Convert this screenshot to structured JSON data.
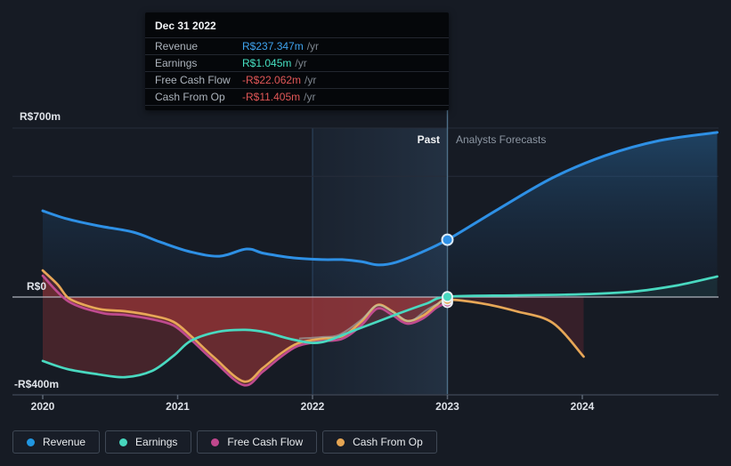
{
  "colors": {
    "background": "#161b24",
    "revenue": "#2e90e5",
    "earnings": "#49d9c0",
    "free_cash_flow": "#bf4b8f",
    "cash_from_op": "#e7a757",
    "negative_value_text": "#e25757",
    "revenue_value_text": "#3fa3ee",
    "earnings_value_text": "#46e0c2",
    "zero_line": "#c9cdd7",
    "gridline": "#262d3a",
    "hover_line": "#4f7089"
  },
  "tooltip": {
    "date": "Dec 31 2022",
    "rows": [
      {
        "label": "Revenue",
        "value": "R$237.347m",
        "unit": "/yr",
        "value_color": "#3fa3ee"
      },
      {
        "label": "Earnings",
        "value": "R$1.045m",
        "unit": "/yr",
        "value_color": "#46e0c2"
      },
      {
        "label": "Free Cash Flow",
        "value": "-R$22.062m",
        "unit": "/yr",
        "value_color": "#e25757"
      },
      {
        "label": "Cash From Op",
        "value": "-R$11.405m",
        "unit": "/yr",
        "value_color": "#e25757"
      }
    ]
  },
  "zones": {
    "past": "Past",
    "forecast": "Analysts Forecasts"
  },
  "y_axis": [
    "R$700m",
    "R$0",
    "-R$400m"
  ],
  "x_axis": [
    "2020",
    "2021",
    "2022",
    "2023",
    "2024"
  ],
  "legend": [
    {
      "label": "Revenue",
      "color": "#2196e0"
    },
    {
      "label": "Earnings",
      "color": "#47d6bd"
    },
    {
      "label": "Free Cash Flow",
      "color": "#c0478d"
    },
    {
      "label": "Cash From Op",
      "color": "#e5a553"
    }
  ],
  "chart_data": {
    "type": "line",
    "title": "Earnings and Revenue Growth (R$ millions, /yr)",
    "x_unit": "year",
    "xlim": [
      2020,
      2025
    ],
    "ylim": [
      -400,
      700
    ],
    "y_ticks": [
      {
        "value": 700,
        "label": "R$700m"
      },
      {
        "value": 0,
        "label": "R$0"
      },
      {
        "value": -400,
        "label": "-R$400m"
      }
    ],
    "x_ticks": [
      2020,
      2021,
      2022,
      2023,
      2024
    ],
    "gridlines_at": [
      700,
      500
    ],
    "past_forecast_divider": 2023,
    "highlight_band": {
      "from": 2022,
      "to": 2023
    },
    "hover": {
      "date": "Dec 31 2022",
      "x": 2023
    },
    "legend_position": "bottom-left",
    "series": [
      {
        "name": "Revenue",
        "color": "#2e90e5",
        "past": [
          [
            2020.0,
            357
          ],
          [
            2020.18,
            324
          ],
          [
            2020.41,
            295
          ],
          [
            2020.67,
            269
          ],
          [
            2020.87,
            228
          ],
          [
            2021.09,
            188
          ],
          [
            2021.31,
            169
          ],
          [
            2021.51,
            199
          ],
          [
            2021.64,
            181
          ],
          [
            2021.86,
            162
          ],
          [
            2022.08,
            155
          ],
          [
            2022.22,
            155
          ],
          [
            2022.36,
            147
          ],
          [
            2022.49,
            133
          ],
          [
            2022.62,
            144
          ],
          [
            2022.79,
            181
          ],
          [
            2023.0,
            237.347
          ]
        ],
        "forecast": [
          [
            2023.0,
            237.347
          ],
          [
            2023.38,
            365
          ],
          [
            2023.78,
            494
          ],
          [
            2024.17,
            586
          ],
          [
            2024.57,
            648
          ],
          [
            2025.0,
            682
          ]
        ]
      },
      {
        "name": "Earnings",
        "color": "#49d9c0",
        "past": [
          [
            2020.0,
            -265
          ],
          [
            2020.18,
            -298
          ],
          [
            2020.41,
            -320
          ],
          [
            2020.61,
            -332
          ],
          [
            2020.81,
            -306
          ],
          [
            2020.97,
            -243
          ],
          [
            2021.1,
            -181
          ],
          [
            2021.3,
            -144
          ],
          [
            2021.5,
            -136
          ],
          [
            2021.66,
            -147
          ],
          [
            2021.86,
            -177
          ],
          [
            2022.06,
            -188
          ],
          [
            2022.32,
            -136
          ],
          [
            2022.65,
            -66
          ],
          [
            2022.85,
            -26
          ],
          [
            2023.0,
            1.045
          ]
        ],
        "forecast": [
          [
            2023.0,
            1.045
          ],
          [
            2023.51,
            7
          ],
          [
            2023.97,
            11
          ],
          [
            2024.37,
            22
          ],
          [
            2024.7,
            48
          ],
          [
            2025.0,
            85
          ]
        ]
      },
      {
        "name": "Free Cash Flow",
        "color": "#bf4b8f",
        "past": [
          [
            2020.0,
            88
          ],
          [
            2020.19,
            -18
          ],
          [
            2020.44,
            -66
          ],
          [
            2020.61,
            -74
          ],
          [
            2020.81,
            -92
          ],
          [
            2020.97,
            -118
          ],
          [
            2021.1,
            -177
          ],
          [
            2021.27,
            -265
          ],
          [
            2021.49,
            -365
          ],
          [
            2021.63,
            -310
          ],
          [
            2021.76,
            -250
          ],
          [
            2021.89,
            -203
          ],
          [
            2022.06,
            -184
          ],
          [
            2022.22,
            -173
          ],
          [
            2022.36,
            -118
          ],
          [
            2022.48,
            -48
          ],
          [
            2022.59,
            -74
          ],
          [
            2022.7,
            -110
          ],
          [
            2022.82,
            -88
          ],
          [
            2022.92,
            -44
          ],
          [
            2023.0,
            -22.062
          ]
        ],
        "forecast": []
      },
      {
        "name": "Cash From Op",
        "color": "#e7a757",
        "past": [
          [
            2020.0,
            110
          ],
          [
            2020.11,
            52
          ],
          [
            2020.19,
            -4
          ],
          [
            2020.31,
            -33
          ],
          [
            2020.44,
            -52
          ],
          [
            2020.61,
            -59
          ],
          [
            2020.81,
            -77
          ],
          [
            2020.97,
            -103
          ],
          [
            2021.1,
            -162
          ],
          [
            2021.27,
            -250
          ],
          [
            2021.49,
            -350
          ],
          [
            2021.63,
            -295
          ],
          [
            2021.76,
            -236
          ],
          [
            2021.89,
            -192
          ],
          [
            2022.06,
            -173
          ],
          [
            2022.22,
            -162
          ],
          [
            2022.36,
            -103
          ],
          [
            2022.48,
            -33
          ],
          [
            2022.59,
            -59
          ],
          [
            2022.7,
            -99
          ],
          [
            2022.82,
            -77
          ],
          [
            2022.92,
            -33
          ],
          [
            2023.0,
            -11.405
          ]
        ],
        "forecast": [
          [
            2023.0,
            -11.405
          ],
          [
            2023.25,
            -26
          ],
          [
            2023.51,
            -59
          ],
          [
            2023.78,
            -107
          ],
          [
            2024.01,
            -247
          ]
        ]
      }
    ],
    "muted_overlay_line": [
      [
        2021.9,
        -172
      ],
      [
        2022.06,
        -166
      ],
      [
        2022.2,
        -156
      ],
      [
        2022.36,
        -95
      ],
      [
        2022.48,
        -35
      ],
      [
        2022.6,
        -64
      ],
      [
        2022.72,
        -100
      ],
      [
        2022.85,
        -52
      ],
      [
        2023.0,
        -6
      ]
    ]
  }
}
